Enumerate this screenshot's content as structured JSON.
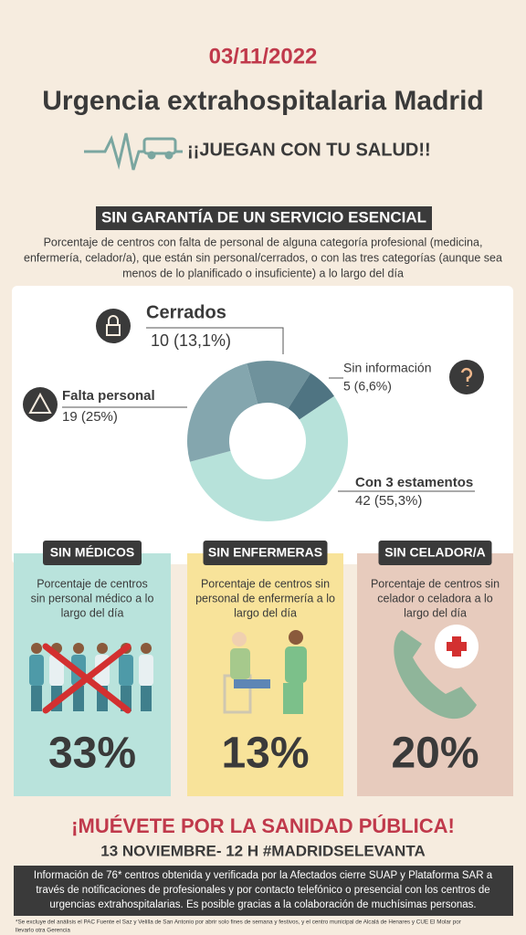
{
  "header": {
    "date": "03/11/2022",
    "title": "Urgencia extrahospitalaria Madrid",
    "slogan": "¡¡JUEGAN CON TU SALUD!!"
  },
  "section": {
    "badge": "SIN GARANTÍA DE UN SERVICIO  ESENCIAL",
    "description": [
      "Porcentaje de centros con falta de personal de alguna categoría profesional (medicina,",
      "enfermería, celador/a), que están sin personal/cerrados, o con las tres categorías (aunque sea",
      "menos de lo planificado o insuficiente) a lo largo del día"
    ]
  },
  "chart_data": {
    "type": "pie",
    "categories": [
      "Cerrados",
      "Sin información",
      "Con 3 estamentos",
      "Falta personal"
    ],
    "values": [
      10,
      5,
      42,
      19
    ],
    "value_labels": [
      "10 (13,1%)",
      "5 (6,6%)",
      "42 (55,3%)",
      "19 (25%)"
    ],
    "colors": [
      "#6f929c",
      "#4f7482",
      "#b7e2da",
      "#84a6ae"
    ]
  },
  "cards": [
    {
      "badge": "SIN MÉDICOS",
      "description": [
        "Porcentaje de centros",
        "sin personal médico a lo",
        "largo del día"
      ],
      "value": "33%"
    },
    {
      "badge": "SIN ENFERMERAS",
      "description": [
        "Porcentaje de centros sin",
        "personal de enfermería a lo",
        "largo del día"
      ],
      "value": "13%"
    },
    {
      "badge": "SIN CELADOR/A",
      "description": [
        "Porcentaje de centros sin",
        "celador o celadora a lo",
        "largo del día"
      ],
      "value": "20%"
    }
  ],
  "footer": {
    "call": "¡MUÉVETE POR LA SANIDAD PÚBLICA!",
    "event": "13 NOVIEMBRE- 12 H #MADRIDSELEVANTA",
    "info": [
      "Información de 76* centros obtenida y verificada por la Afectados cierre SUAP y Plataforma SAR a",
      "través de notificaciones de profesionales y por contacto telefónico o presencial con los centros de",
      "urgencias extrahospitalarias. Es posible gracias a la colaboración de muchísimas personas."
    ],
    "note": [
      "*Se excluye del análisis el PAC Fuente el Saz y Velilla de San Antonio por abrir solo fines de semana y festivos, y el centro municipal de Alcalá de Henares y CUE El Molar por",
      "llevarlo otra Gerencia"
    ]
  }
}
